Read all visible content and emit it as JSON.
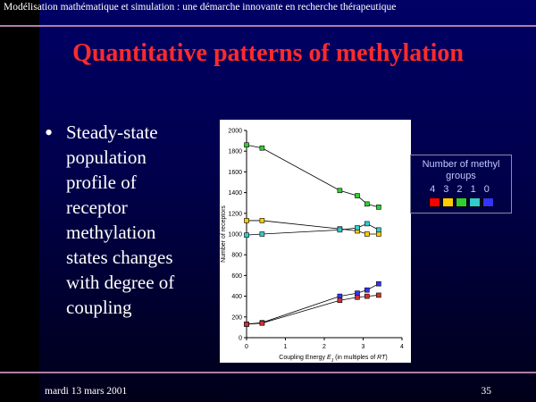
{
  "header": {
    "text": "Modélisation mathématique et simulation : une démarche innovante en recherche thérapeutique"
  },
  "slide": {
    "title": "Quantitative patterns of methylation",
    "bullet": {
      "lines": [
        "Steady-state",
        "population",
        "profile of",
        "receptor",
        "methylation",
        "states changes",
        "with degree of",
        "coupling"
      ]
    }
  },
  "legend": {
    "title_line1": "Number of methyl",
    "title_line2": "groups",
    "numbers": "4 3 2 1 0",
    "swatches": [
      {
        "name": "4",
        "color": "#ff0000"
      },
      {
        "name": "3",
        "color": "#ffcc00"
      },
      {
        "name": "2",
        "color": "#33cc33"
      },
      {
        "name": "1",
        "color": "#33cccc"
      },
      {
        "name": "0",
        "color": "#3333ff"
      }
    ]
  },
  "footer": {
    "date": "mardi 13 mars 2001",
    "page": "35"
  },
  "chart_data": {
    "type": "line",
    "xlabel_pre": "Coupling Energy ",
    "xlabel_sym": "E",
    "xlabel_sub": "J",
    "xlabel_mid": " (in multiples of ",
    "xlabel_rt": "RT",
    "xlabel_post": ")",
    "ylabel": "Number of receptors",
    "xlim": [
      0,
      4
    ],
    "ylim": [
      0,
      2000
    ],
    "xticks": [
      "0",
      "1",
      "2",
      "3",
      "4"
    ],
    "yticks": [
      "0",
      "200",
      "400",
      "600",
      "800",
      "1000",
      "1200",
      "1400",
      "1600",
      "1800",
      "2000"
    ],
    "grid": false,
    "series": [
      {
        "color": "#33cc33",
        "points": [
          [
            0,
            1860
          ],
          [
            0.4,
            1830
          ],
          [
            2.4,
            1420
          ],
          [
            2.85,
            1370
          ],
          [
            3.1,
            1290
          ],
          [
            3.4,
            1260
          ]
        ]
      },
      {
        "color": "#ffcc00",
        "points": [
          [
            0,
            1130
          ],
          [
            0.4,
            1130
          ],
          [
            2.4,
            1050
          ],
          [
            2.85,
            1030
          ],
          [
            3.1,
            1000
          ],
          [
            3.4,
            1000
          ]
        ]
      },
      {
        "color": "#33cccc",
        "points": [
          [
            0,
            990
          ],
          [
            0.4,
            1000
          ],
          [
            2.4,
            1040
          ],
          [
            2.85,
            1060
          ],
          [
            3.1,
            1100
          ],
          [
            3.4,
            1040
          ]
        ]
      },
      {
        "color": "#3333ff",
        "points": [
          [
            0,
            130
          ],
          [
            0.4,
            145
          ],
          [
            2.4,
            400
          ],
          [
            2.85,
            430
          ],
          [
            3.1,
            460
          ],
          [
            3.4,
            520
          ]
        ]
      },
      {
        "color": "#cc3333",
        "points": [
          [
            0,
            130
          ],
          [
            0.4,
            140
          ],
          [
            2.4,
            360
          ],
          [
            2.85,
            390
          ],
          [
            3.1,
            400
          ],
          [
            3.4,
            410
          ]
        ]
      }
    ]
  }
}
